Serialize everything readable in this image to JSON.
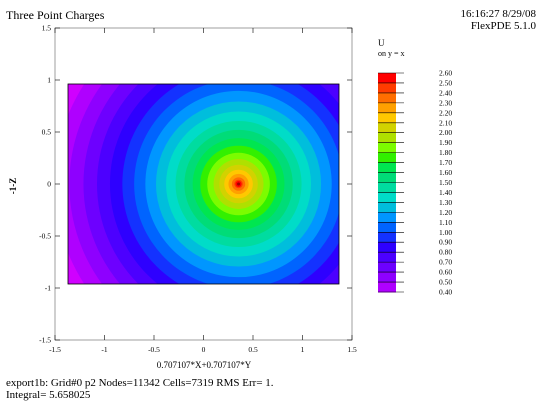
{
  "header": {
    "title": "Three Point Charges",
    "time": "16:16:27 8/29/08",
    "software": "FlexPDE 5.1.0"
  },
  "chart_data": {
    "type": "heatmap",
    "title": "Three Point Charges",
    "variable": "U",
    "surface_label": "on y = x",
    "xlabel": "0.707107*X+0.707107*Y",
    "ylabel": "Z",
    "ylabel_prefix": "-1-",
    "xlim": [
      -1.5,
      1.5
    ],
    "ylim": [
      -1.5,
      1.5
    ],
    "x_ticks": [
      "-1.5",
      "-1",
      "-0.5",
      "0",
      "0.5",
      "1",
      "1.5"
    ],
    "y_ticks": [
      "1.5",
      "1",
      "0.5",
      "0",
      "-0.5",
      "-1",
      "-1.5"
    ],
    "domain": {
      "x": [
        -1.414,
        1.414
      ],
      "z": [
        -1,
        1
      ]
    },
    "peak": {
      "x": 0.354,
      "z": 0,
      "value": 2.6
    },
    "legend_levels": [
      "2.60",
      "2.50",
      "2.40",
      "2.30",
      "2.20",
      "2.10",
      "2.00",
      "1.90",
      "1.80",
      "1.70",
      "1.60",
      "1.50",
      "1.40",
      "1.30",
      "1.20",
      "1.10",
      "1.00",
      "0.90",
      "0.80",
      "0.70",
      "0.60",
      "0.50",
      "0.40"
    ],
    "level_colors": [
      "#f0f",
      "#d000ff",
      "#af00ff",
      "#8e00ff",
      "#6d00ff",
      "#4c00ff",
      "#2e00ff",
      "#1432ff",
      "#0064ff",
      "#0096ff",
      "#00bedc",
      "#00dcc8",
      "#00dca0",
      "#00dc78",
      "#00e650",
      "#32f000",
      "#7cfc00",
      "#afe000",
      "#d2d200",
      "#ffc800",
      "#ffa000",
      "#ff6e00",
      "#ff3c00",
      "#ff0000"
    ]
  },
  "footer": {
    "line1": "export1b:  Grid#0  p2  Nodes=11342 Cells=7319 RMS Err= 1.",
    "line2": "Integral=  5.658025"
  }
}
